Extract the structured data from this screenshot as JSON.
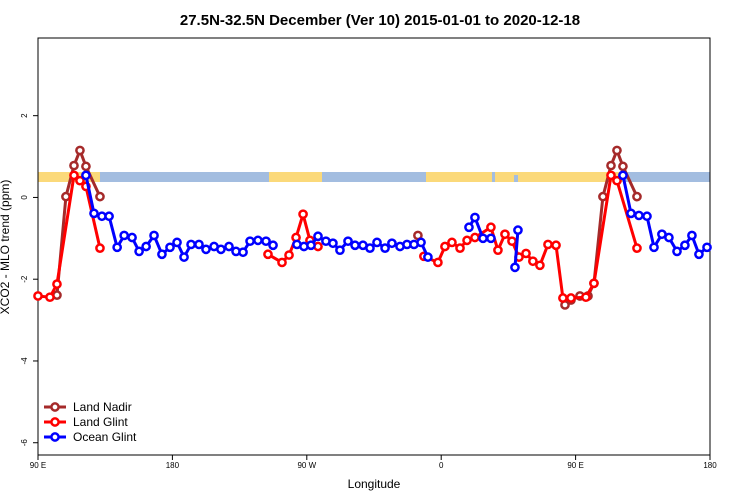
{
  "chart_data": {
    "type": "line",
    "title": "27.5N-32.5N December (Ver 10)   2015-01-01 to 2020-12-18",
    "x_label": "Longitude",
    "y_label": "XCO2 - MLO trend (ppm)",
    "xlim": [
      90,
      540
    ],
    "xticks": [
      {
        "value": 90,
        "label": "90 E"
      },
      {
        "value": 180,
        "label": "180"
      },
      {
        "value": 270,
        "label": "90 W"
      },
      {
        "value": 360,
        "label": "0"
      },
      {
        "value": 450,
        "label": "90 E"
      },
      {
        "value": 540,
        "label": "180"
      }
    ],
    "ylim": [
      -6.3,
      3.9
    ],
    "yticks": [
      -6,
      -4,
      -2,
      0,
      2
    ],
    "legend": "bottom-left",
    "series": [
      {
        "name": "Land Nadir",
        "color": "#a52a2a",
        "x": [
          102.7,
          108.7,
          114.1,
          118.1,
          122.1,
          131.5,
          null,
          344.4,
          null,
          442.9,
          446.9,
          452.9,
          458.3,
          462.3,
          468.3,
          473.7,
          477.7,
          481.7,
          491.1
        ],
        "values": [
          -2.39,
          0.02,
          0.78,
          1.15,
          0.76,
          0.02,
          null,
          -0.93,
          null,
          -2.63,
          -2.51,
          -2.41,
          -2.41,
          -2.1,
          0.02,
          0.78,
          1.15,
          0.76,
          0.02
        ]
      },
      {
        "name": "Land Glint",
        "color": "#ff0000",
        "x": [
          90,
          98,
          102.7,
          114.1,
          118.1,
          122.1,
          131.5,
          null,
          244,
          253.4,
          258.1,
          262.8,
          267.5,
          272.1,
          277.5,
          null,
          348.4,
          357.8,
          362.5,
          367.2,
          372.6,
          377.3,
          382.6,
          393.3,
          398,
          402.7,
          407.4,
          412.1,
          416.8,
          421.4,
          426.1,
          431.5,
          436.9,
          441.5,
          446.9,
          456.9,
          462.3,
          473.7,
          477.7,
          491.1
        ],
        "values": [
          -2.41,
          -2.44,
          -2.12,
          0.54,
          0.41,
          0.27,
          -1.24,
          null,
          -1.39,
          -1.59,
          -1.41,
          -0.98,
          -0.41,
          -1.05,
          -1.2,
          null,
          -1.44,
          -1.59,
          -1.2,
          -1.1,
          -1.24,
          -1.05,
          -0.98,
          -0.73,
          -1.29,
          -0.9,
          -1.07,
          -1.46,
          -1.37,
          -1.56,
          -1.66,
          -1.15,
          -1.17,
          -2.46,
          -2.46,
          -2.44,
          -2.1,
          0.54,
          0.41,
          -1.24
        ]
      },
      {
        "name": "Ocean Glint",
        "color": "#0000ff",
        "x": [
          122.1,
          127.5,
          132.8,
          137.6,
          143,
          147.7,
          153,
          157.7,
          162.4,
          167.7,
          173,
          178.4,
          183.1,
          187.8,
          192.5,
          197.8,
          202.5,
          207.9,
          212.5,
          217.9,
          222.6,
          227.3,
          232,
          237.3,
          242.7,
          247.4,
          null,
          263.4,
          268.1,
          272.8,
          277.5,
          282.8,
          287.5,
          292.2,
          297.6,
          302.3,
          307.6,
          312.3,
          317,
          322.4,
          327,
          332.4,
          337.1,
          341.8,
          346.5,
          351.1,
          null,
          378.6,
          382.6,
          388,
          393.3,
          null,
          409.4,
          411.4,
          null,
          481.7,
          487.1,
          492.4,
          497.8,
          502.5,
          507.8,
          512.5,
          517.9,
          523.2,
          527.9,
          532.6,
          538
        ],
        "values": [
          0.54,
          -0.39,
          -0.46,
          -0.46,
          -1.22,
          -0.93,
          -0.98,
          -1.32,
          -1.2,
          -0.93,
          -1.39,
          -1.22,
          -1.1,
          -1.46,
          -1.15,
          -1.15,
          -1.27,
          -1.2,
          -1.27,
          -1.2,
          -1.32,
          -1.34,
          -1.07,
          -1.05,
          -1.07,
          -1.17,
          null,
          -1.15,
          -1.2,
          -1.17,
          -0.95,
          -1.07,
          -1.12,
          -1.29,
          -1.07,
          -1.17,
          -1.17,
          -1.24,
          -1.1,
          -1.24,
          -1.12,
          -1.2,
          -1.15,
          -1.15,
          -1.1,
          -1.46,
          null,
          -0.73,
          -0.49,
          -1,
          -1,
          null,
          -1.71,
          -0.8,
          null,
          0.54,
          -0.39,
          -0.44,
          -0.46,
          -1.22,
          -0.9,
          -0.98,
          -1.32,
          -1.17,
          -0.93,
          -1.39,
          -1.22
        ]
      }
    ]
  }
}
